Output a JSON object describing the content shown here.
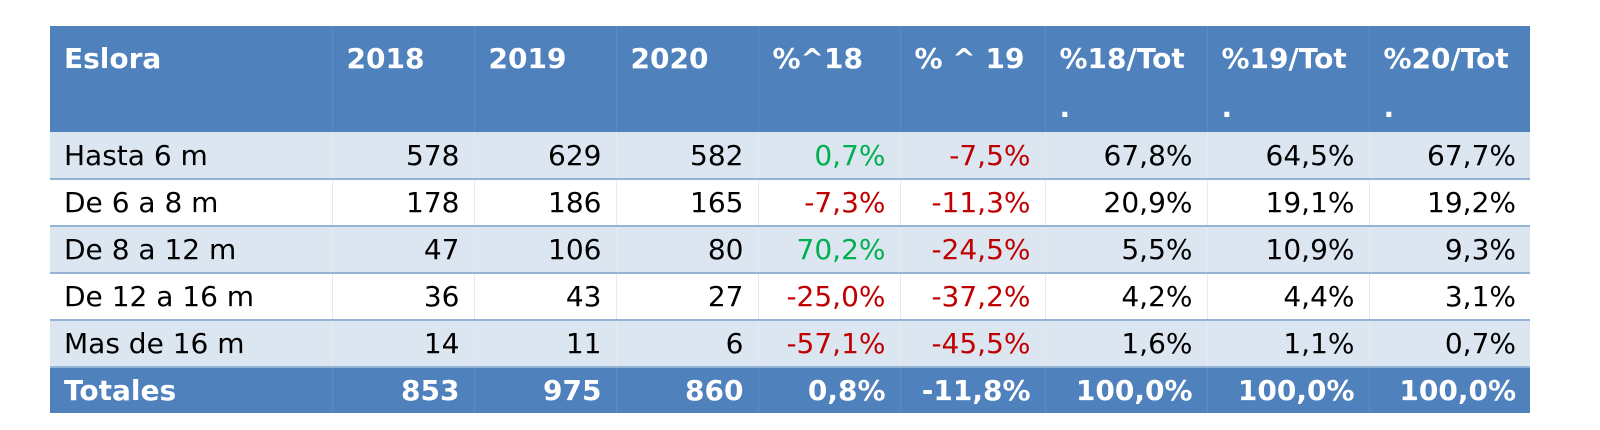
{
  "table": {
    "headers": [
      "Eslora",
      "2018",
      "2019",
      "2020",
      "%^18",
      "% ^ 19",
      "%18/Tot .",
      "%19/Tot .",
      "%20/Tot ."
    ],
    "rows": [
      {
        "label": "Hasta 6 m",
        "y2018": "578",
        "y2019": "629",
        "y2020": "582",
        "var18": "0,7%",
        "var19": "-7,5%",
        "tot18": "67,8%",
        "tot19": "64,5%",
        "tot20": "67,7%"
      },
      {
        "label": "De 6 a 8 m",
        "y2018": "178",
        "y2019": "186",
        "y2020": "165",
        "var18": "-7,3%",
        "var19": "-11,3%",
        "tot18": "20,9%",
        "tot19": "19,1%",
        "tot20": "19,2%"
      },
      {
        "label": "De 8 a 12 m",
        "y2018": "47",
        "y2019": "106",
        "y2020": "80",
        "var18": "70,2%",
        "var19": "-24,5%",
        "tot18": "5,5%",
        "tot19": "10,9%",
        "tot20": "9,3%"
      },
      {
        "label": "De 12 a 16 m",
        "y2018": "36",
        "y2019": "43",
        "y2020": "27",
        "var18": "-25,0%",
        "var19": "-37,2%",
        "tot18": "4,2%",
        "tot19": "4,4%",
        "tot20": "3,1%"
      },
      {
        "label": "Mas de 16 m",
        "y2018": "14",
        "y2019": "11",
        "y2020": "6",
        "var18": "-57,1%",
        "var19": "-45,5%",
        "tot18": "1,6%",
        "tot19": "1,1%",
        "tot20": "0,7%"
      }
    ],
    "totals": {
      "label": "Totales",
      "y2018": "853",
      "y2019": "975",
      "y2020": "860",
      "var18": "0,8%",
      "var19": "-11,8%",
      "tot18": "100,0%",
      "tot19": "100,0%",
      "tot20": "100,0%"
    },
    "colors": {
      "header_bg": "#4f81bd",
      "band_bg": "#dce6f1",
      "positive": "#00b050",
      "negative": "#c00000"
    }
  }
}
